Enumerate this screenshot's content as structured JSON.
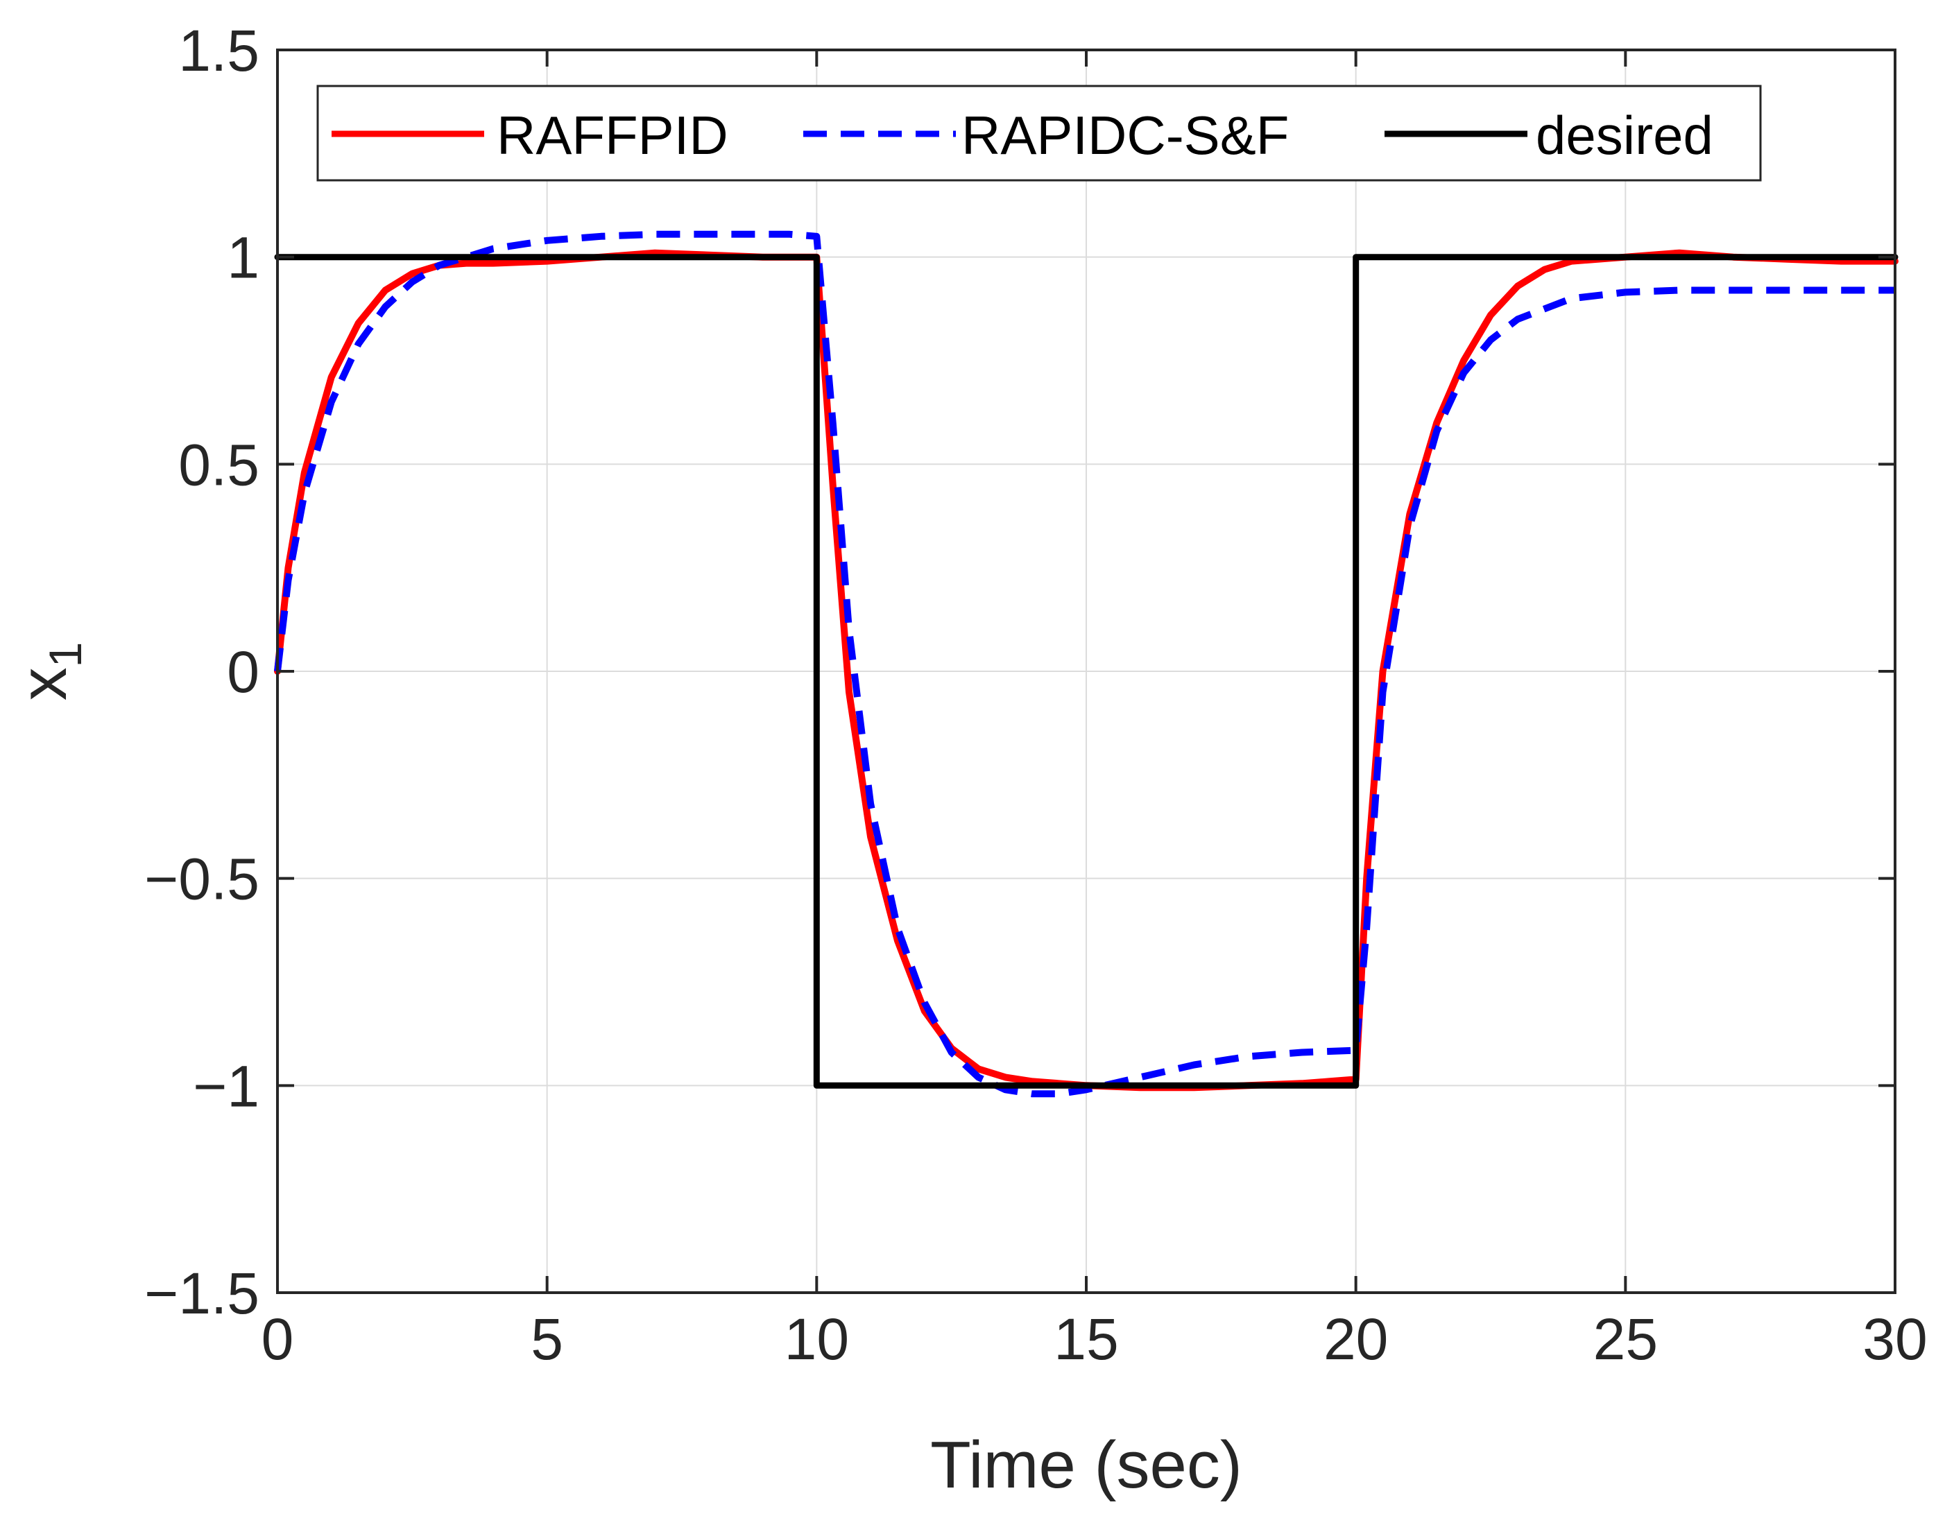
{
  "chart_data": {
    "type": "line",
    "title": "",
    "xlabel": "Time (sec)",
    "ylabel_main": "x",
    "ylabel_sub": "1",
    "xlim": [
      0,
      30
    ],
    "ylim": [
      -1.5,
      1.5
    ],
    "xticks": [
      0,
      5,
      10,
      15,
      20,
      25,
      30
    ],
    "xtick_labels": [
      "0",
      "5",
      "10",
      "15",
      "20",
      "25",
      "30"
    ],
    "yticks": [
      -1.5,
      -1,
      -0.5,
      0,
      0.5,
      1,
      1.5
    ],
    "ytick_labels": [
      "−1.5",
      "−1",
      "−0.5",
      "0",
      "0.5",
      "1",
      "1.5"
    ],
    "grid": true,
    "legend_position": "top",
    "series": [
      {
        "name": "RAFFPID",
        "color": "#ff0000",
        "style": "solid",
        "x": [
          0,
          0.2,
          0.5,
          1,
          1.5,
          2,
          2.5,
          3,
          3.5,
          4,
          5,
          6,
          7,
          8,
          9,
          9.5,
          10,
          10.3,
          10.6,
          11,
          11.5,
          12,
          12.5,
          13,
          13.5,
          14,
          15,
          16,
          17,
          18,
          19,
          19.5,
          20,
          20.2,
          20.5,
          21,
          21.5,
          22,
          22.5,
          23,
          23.5,
          24,
          25,
          26,
          27,
          28,
          29,
          30
        ],
        "y": [
          0,
          0.25,
          0.48,
          0.71,
          0.84,
          0.92,
          0.96,
          0.98,
          0.985,
          0.985,
          0.99,
          1.0,
          1.01,
          1.005,
          1.0,
          1.0,
          1.0,
          0.45,
          -0.05,
          -0.4,
          -0.65,
          -0.82,
          -0.91,
          -0.96,
          -0.98,
          -0.99,
          -1.0,
          -1.005,
          -1.005,
          -1.0,
          -0.995,
          -0.99,
          -0.985,
          -0.5,
          0.0,
          0.38,
          0.6,
          0.75,
          0.86,
          0.93,
          0.97,
          0.99,
          1.0,
          1.01,
          1.0,
          0.995,
          0.99,
          0.99
        ]
      },
      {
        "name": "RAPIDC-S&F",
        "color": "#0000ff",
        "style": "dashed",
        "x": [
          0,
          0.2,
          0.5,
          1,
          1.5,
          2,
          2.5,
          3,
          3.5,
          4,
          5,
          6,
          7,
          8,
          9,
          9.5,
          10,
          10.3,
          10.6,
          11,
          11.5,
          12,
          12.5,
          13,
          13.5,
          14,
          14.5,
          15,
          16,
          17,
          18,
          19,
          20,
          20.2,
          20.5,
          21,
          21.5,
          22,
          22.5,
          23,
          24,
          25,
          26,
          27,
          28,
          29,
          30
        ],
        "y": [
          0,
          0.22,
          0.43,
          0.65,
          0.79,
          0.88,
          0.94,
          0.98,
          1.0,
          1.02,
          1.04,
          1.05,
          1.055,
          1.055,
          1.055,
          1.055,
          1.05,
          0.6,
          0.1,
          -0.32,
          -0.62,
          -0.8,
          -0.92,
          -0.98,
          -1.01,
          -1.02,
          -1.02,
          -1.01,
          -0.98,
          -0.95,
          -0.93,
          -0.92,
          -0.915,
          -0.62,
          -0.05,
          0.35,
          0.58,
          0.72,
          0.8,
          0.85,
          0.9,
          0.915,
          0.92,
          0.92,
          0.92,
          0.92,
          0.92
        ]
      },
      {
        "name": "desired",
        "color": "#000000",
        "style": "solid",
        "x": [
          0,
          10,
          10,
          20,
          20,
          30
        ],
        "y": [
          1,
          1,
          -1,
          -1,
          1,
          1
        ]
      }
    ]
  }
}
